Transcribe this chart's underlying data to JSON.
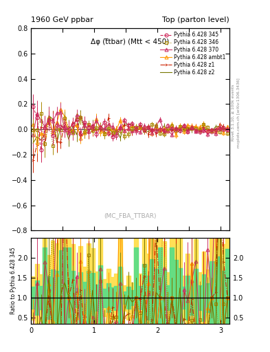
{
  "title_left": "1960 GeV ppbar",
  "title_right": "Top (parton level)",
  "annotation": "Δφ (t̅tbar) (Mtt < 450)",
  "watermark": "(MC_FBA_TTBAR)",
  "right_label_top": "Rivet 3.1.10, ≥ 100k events",
  "right_label_bot": "mcplots.cern.ch [arXiv:1306.3436]",
  "ylabel_ratio": "Ratio to Pythia 6.428 345",
  "xlim": [
    0,
    3.14159
  ],
  "ylim_main": [
    -0.8,
    0.8
  ],
  "yticks_main": [
    -0.8,
    -0.6,
    -0.4,
    -0.2,
    0.0,
    0.2,
    0.4,
    0.6,
    0.8
  ],
  "yticks_ratio": [
    0.5,
    1.0,
    1.5,
    2.0
  ],
  "ylim_ratio": [
    0.35,
    2.5
  ],
  "series": [
    {
      "label": "Pythia 6.428 345",
      "color": "#cc2255",
      "linestyle": "--",
      "marker": "o",
      "marker_size": 3.5,
      "fillstyle": "none"
    },
    {
      "label": "Pythia 6.428 346",
      "color": "#aa8800",
      "linestyle": ":",
      "marker": "s",
      "marker_size": 3.5,
      "fillstyle": "none"
    },
    {
      "label": "Pythia 6.428 370",
      "color": "#cc3366",
      "linestyle": "-",
      "marker": "^",
      "marker_size": 3.5,
      "fillstyle": "none"
    },
    {
      "label": "Pythia 6.428 ambt1",
      "color": "#ff9900",
      "linestyle": "-",
      "marker": "^",
      "marker_size": 3.5,
      "fillstyle": "none"
    },
    {
      "label": "Pythia 6.428 z1",
      "color": "#cc2200",
      "linestyle": "-.",
      "marker": "4",
      "marker_size": 3,
      "fillstyle": "full"
    },
    {
      "label": "Pythia 6.428 z2",
      "color": "#777700",
      "linestyle": "-",
      "marker": "None",
      "marker_size": 3,
      "fillstyle": "full"
    }
  ],
  "background_color": "#ffffff",
  "ratio_green": "#55dd88",
  "ratio_yellow": "#ffdd44"
}
